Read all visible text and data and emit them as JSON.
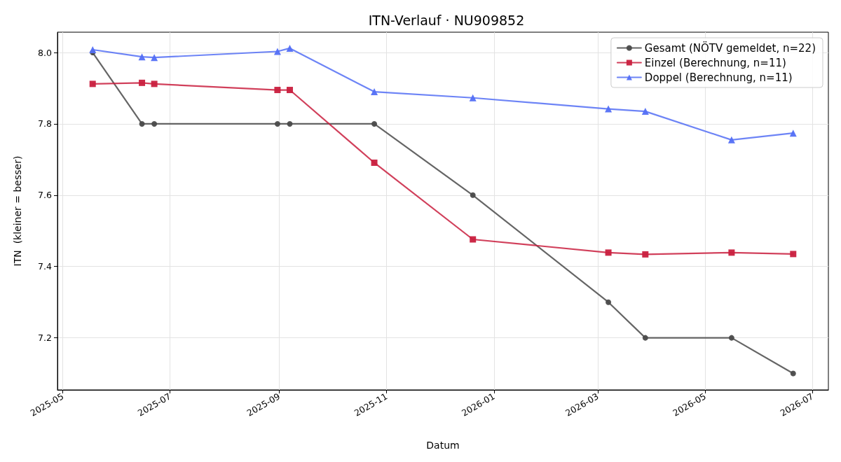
{
  "chart_data": {
    "type": "line",
    "title": "ITN-Verlauf · NU909852",
    "xlabel": "Datum",
    "ylabel": "ITN  (kleiner = besser)",
    "x": [
      "2025-05-18",
      "2025-06-15",
      "2025-06-22",
      "2025-08-31",
      "2025-09-07",
      "2025-10-25",
      "2025-12-20",
      "2026-03-07",
      "2026-03-28",
      "2026-05-16",
      "2026-06-20"
    ],
    "series": [
      {
        "name": "Gesamt (NÖTV gemeldet, n=22)",
        "color": "#4a4a4a",
        "marker": "circle",
        "values": [
          8.0,
          7.8,
          7.8,
          7.8,
          7.8,
          7.8,
          7.6,
          7.3,
          7.2,
          7.2,
          7.1
        ]
      },
      {
        "name": "Einzel (Berechnung, n=11)",
        "color": "#c91f3e",
        "marker": "square",
        "values": [
          7.912,
          7.915,
          7.912,
          7.895,
          7.895,
          7.691,
          7.476,
          7.439,
          7.434,
          7.439,
          7.435
        ]
      },
      {
        "name": "Doppel (Berechnung, n=11)",
        "color": "#536ff5",
        "marker": "triangle",
        "values": [
          8.008,
          7.988,
          7.986,
          8.003,
          8.012,
          7.89,
          7.873,
          7.842,
          7.835,
          7.755,
          7.774
        ]
      }
    ],
    "xlim": [
      "2025-04-28",
      "2026-07-10"
    ],
    "xticks": [
      "2025-05",
      "2025-07",
      "2025-09",
      "2025-11",
      "2026-01",
      "2026-03",
      "2026-05",
      "2026-07"
    ],
    "ylim": [
      7.054,
      8.057
    ],
    "yticks": [
      7.2,
      7.4,
      7.6,
      7.8,
      {
        "value": 8,
        "label": "8.0"
      }
    ],
    "grid": true,
    "legend": "top right",
    "line_style": "solid"
  }
}
